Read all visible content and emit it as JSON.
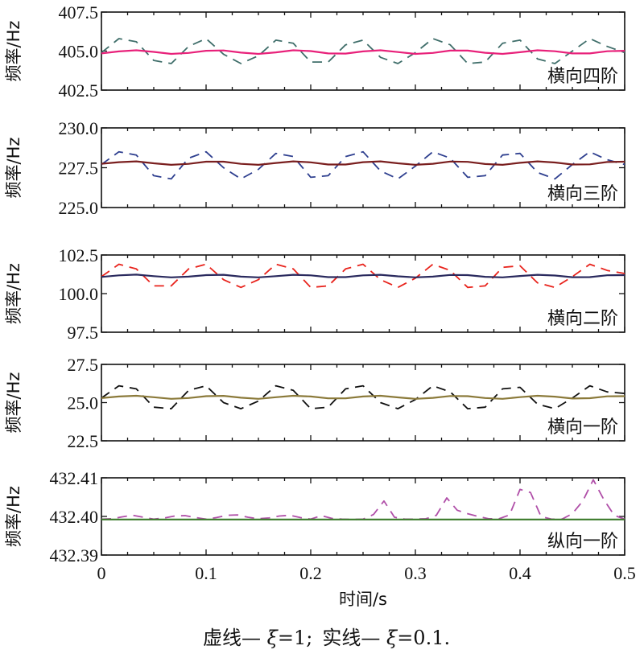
{
  "chart_data": [
    {
      "type": "line",
      "label": "横向四阶",
      "ylabel": "频率/Hz",
      "yticks": [
        "407.5",
        "405.0",
        "402.5"
      ],
      "ylim": [
        402.5,
        407.5
      ],
      "xlim": [
        0,
        0.5
      ],
      "series": [
        {
          "style": "dashed",
          "color": "#3f6e6a",
          "x": [
            0,
            0.0167,
            0.0333,
            0.05,
            0.0667,
            0.0833,
            0.1,
            0.1167,
            0.1333,
            0.15,
            0.1667,
            0.1833,
            0.2,
            0.2167,
            0.2333,
            0.25,
            0.2667,
            0.2833,
            0.3,
            0.3167,
            0.3333,
            0.35,
            0.3667,
            0.3833,
            0.4,
            0.4167,
            0.4333,
            0.45,
            0.4667,
            0.4833,
            0.5
          ],
          "y": [
            404.9,
            405.8,
            405.6,
            404.4,
            404.2,
            405.3,
            405.8,
            404.8,
            404.2,
            404.7,
            405.7,
            405.5,
            404.3,
            404.3,
            405.4,
            405.7,
            404.6,
            404.2,
            404.9,
            405.8,
            405.4,
            404.2,
            404.3,
            405.5,
            405.7,
            404.5,
            404.2,
            405.0,
            405.8,
            405.3,
            404.9
          ]
        },
        {
          "style": "solid",
          "color": "#e8217a",
          "x": [
            0,
            0.0167,
            0.0333,
            0.05,
            0.0667,
            0.0833,
            0.1,
            0.1167,
            0.1333,
            0.15,
            0.1667,
            0.1833,
            0.2,
            0.2167,
            0.2333,
            0.25,
            0.2667,
            0.2833,
            0.3,
            0.3167,
            0.3333,
            0.35,
            0.3667,
            0.3833,
            0.4,
            0.4167,
            0.4333,
            0.45,
            0.4667,
            0.4833,
            0.5
          ],
          "y": [
            404.85,
            404.98,
            405.05,
            404.95,
            404.82,
            404.88,
            405.02,
            405.04,
            404.9,
            404.82,
            404.92,
            405.05,
            405.0,
            404.85,
            404.84,
            404.98,
            405.05,
            404.94,
            404.82,
            404.88,
            405.03,
            405.03,
            404.89,
            404.82,
            404.93,
            405.05,
            404.99,
            404.85,
            404.85,
            404.99,
            405.02
          ]
        }
      ]
    },
    {
      "type": "line",
      "label": "横向三阶",
      "ylabel": "频率/Hz",
      "yticks": [
        "230.0",
        "227.5",
        "225.0"
      ],
      "ylim": [
        225.0,
        230.0
      ],
      "xlim": [
        0,
        0.5
      ],
      "series": [
        {
          "style": "dashed",
          "color": "#2e3f8f",
          "x": [
            0,
            0.0167,
            0.0333,
            0.05,
            0.0667,
            0.0833,
            0.1,
            0.1167,
            0.1333,
            0.15,
            0.1667,
            0.1833,
            0.2,
            0.2167,
            0.2333,
            0.25,
            0.2667,
            0.2833,
            0.3,
            0.3167,
            0.3333,
            0.35,
            0.3667,
            0.3833,
            0.4,
            0.4167,
            0.4333,
            0.45,
            0.4667,
            0.4833,
            0.5
          ],
          "y": [
            227.7,
            228.5,
            228.3,
            227.0,
            226.8,
            228.1,
            228.5,
            227.5,
            226.8,
            227.4,
            228.4,
            228.2,
            226.9,
            227.0,
            228.2,
            228.5,
            227.3,
            226.8,
            227.6,
            228.5,
            228.1,
            226.9,
            227.0,
            228.3,
            228.4,
            227.2,
            226.8,
            227.7,
            228.5,
            228.0,
            227.7
          ]
        },
        {
          "style": "solid",
          "color": "#7a1f1f",
          "x": [
            0,
            0.0167,
            0.0333,
            0.05,
            0.0667,
            0.0833,
            0.1,
            0.1167,
            0.1333,
            0.15,
            0.1667,
            0.1833,
            0.2,
            0.2167,
            0.2333,
            0.25,
            0.2667,
            0.2833,
            0.3,
            0.3167,
            0.3333,
            0.35,
            0.3667,
            0.3833,
            0.4,
            0.4167,
            0.4333,
            0.45,
            0.4667,
            0.4833,
            0.5
          ],
          "y": [
            227.75,
            227.85,
            227.9,
            227.78,
            227.68,
            227.74,
            227.88,
            227.88,
            227.74,
            227.68,
            227.8,
            227.9,
            227.84,
            227.7,
            227.7,
            227.85,
            227.9,
            227.78,
            227.68,
            227.75,
            227.89,
            227.87,
            227.73,
            227.68,
            227.81,
            227.9,
            227.83,
            227.7,
            227.71,
            227.86,
            227.88
          ]
        }
      ]
    },
    {
      "type": "line",
      "label": "横向二阶",
      "ylabel": "频率/Hz",
      "yticks": [
        "102.5",
        "100.0",
        "97.5"
      ],
      "ylim": [
        97.5,
        102.5
      ],
      "xlim": [
        0,
        0.5
      ],
      "series": [
        {
          "style": "dashed",
          "color": "#e8231c",
          "x": [
            0,
            0.0167,
            0.0333,
            0.05,
            0.0667,
            0.0833,
            0.1,
            0.1167,
            0.1333,
            0.15,
            0.1667,
            0.1833,
            0.2,
            0.2167,
            0.2333,
            0.25,
            0.2667,
            0.2833,
            0.3,
            0.3167,
            0.3333,
            0.35,
            0.3667,
            0.3833,
            0.4,
            0.4167,
            0.4333,
            0.45,
            0.4667,
            0.4833,
            0.5
          ],
          "y": [
            101.1,
            101.9,
            101.6,
            100.5,
            100.5,
            101.6,
            101.9,
            100.9,
            100.4,
            100.9,
            101.9,
            101.6,
            100.4,
            100.5,
            101.6,
            101.9,
            100.9,
            100.4,
            101.0,
            101.9,
            101.5,
            100.4,
            100.5,
            101.7,
            101.8,
            100.7,
            100.4,
            101.1,
            101.9,
            101.5,
            101.3
          ]
        },
        {
          "style": "solid",
          "color": "#2a2a5e",
          "x": [
            0,
            0.0167,
            0.0333,
            0.05,
            0.0667,
            0.0833,
            0.1,
            0.1167,
            0.1333,
            0.15,
            0.1667,
            0.1833,
            0.2,
            0.2167,
            0.2333,
            0.25,
            0.2667,
            0.2833,
            0.3,
            0.3167,
            0.3333,
            0.35,
            0.3667,
            0.3833,
            0.4,
            0.4167,
            0.4333,
            0.45,
            0.4667,
            0.4833,
            0.5
          ],
          "y": [
            101.08,
            101.18,
            101.23,
            101.13,
            101.05,
            101.1,
            101.2,
            101.22,
            101.1,
            101.05,
            101.13,
            101.22,
            101.18,
            101.07,
            101.07,
            101.18,
            101.22,
            101.12,
            101.05,
            101.1,
            101.21,
            101.2,
            101.09,
            101.05,
            101.14,
            101.22,
            101.17,
            101.06,
            101.07,
            101.19,
            101.2
          ]
        }
      ]
    },
    {
      "type": "line",
      "label": "横向一阶",
      "ylabel": "频率/Hz",
      "yticks": [
        "27.5",
        "25.0",
        "22.5"
      ],
      "ylim": [
        22.5,
        27.5
      ],
      "xlim": [
        0,
        0.5
      ],
      "series": [
        {
          "style": "dashed",
          "color": "#111111",
          "x": [
            0,
            0.0167,
            0.0333,
            0.05,
            0.0667,
            0.0833,
            0.1,
            0.1167,
            0.1333,
            0.15,
            0.1667,
            0.1833,
            0.2,
            0.2167,
            0.2333,
            0.25,
            0.2667,
            0.2833,
            0.3,
            0.3167,
            0.3333,
            0.35,
            0.3667,
            0.3833,
            0.4,
            0.4167,
            0.4333,
            0.45,
            0.4667,
            0.4833,
            0.5
          ],
          "y": [
            25.3,
            26.1,
            25.9,
            24.7,
            24.6,
            25.8,
            26.1,
            25.0,
            24.6,
            25.1,
            26.1,
            25.8,
            24.6,
            24.7,
            25.9,
            26.1,
            25.0,
            24.6,
            25.2,
            26.1,
            25.7,
            24.6,
            24.7,
            25.9,
            26.0,
            24.9,
            24.6,
            25.3,
            26.1,
            25.7,
            25.6
          ]
        },
        {
          "style": "solid",
          "color": "#8b7a3a",
          "x": [
            0,
            0.0167,
            0.0333,
            0.05,
            0.0667,
            0.0833,
            0.1,
            0.1167,
            0.1333,
            0.15,
            0.1667,
            0.1833,
            0.2,
            0.2167,
            0.2333,
            0.25,
            0.2667,
            0.2833,
            0.3,
            0.3167,
            0.3333,
            0.35,
            0.3667,
            0.3833,
            0.4,
            0.4167,
            0.4333,
            0.45,
            0.4667,
            0.4833,
            0.5
          ],
          "y": [
            25.3,
            25.4,
            25.45,
            25.35,
            25.25,
            25.3,
            25.42,
            25.44,
            25.32,
            25.25,
            25.35,
            25.45,
            25.4,
            25.28,
            25.28,
            25.4,
            25.45,
            25.34,
            25.25,
            25.31,
            25.43,
            25.42,
            25.3,
            25.25,
            25.36,
            25.45,
            25.39,
            25.27,
            25.29,
            25.41,
            25.42
          ]
        }
      ]
    },
    {
      "type": "line",
      "label": "纵向一阶",
      "ylabel": "频率/Hz",
      "yticks": [
        "432.41",
        "432.40",
        "432.39"
      ],
      "ylim": [
        432.39,
        432.41
      ],
      "xlim": [
        0,
        0.5
      ],
      "xticks": [
        "0",
        "0.1",
        "0.2",
        "0.3",
        "0.4",
        "0.5"
      ],
      "xlabel": "时间/s",
      "series": [
        {
          "style": "dashed",
          "color": "#b04fa8",
          "x": [
            0,
            0.01,
            0.02,
            0.03,
            0.04,
            0.05,
            0.06,
            0.07,
            0.08,
            0.09,
            0.1,
            0.11,
            0.12,
            0.13,
            0.14,
            0.15,
            0.16,
            0.17,
            0.18,
            0.19,
            0.2,
            0.21,
            0.22,
            0.23,
            0.24,
            0.25,
            0.26,
            0.27,
            0.28,
            0.29,
            0.3,
            0.31,
            0.32,
            0.33,
            0.34,
            0.35,
            0.36,
            0.37,
            0.38,
            0.39,
            0.4,
            0.41,
            0.42,
            0.43,
            0.44,
            0.45,
            0.46,
            0.47,
            0.48,
            0.49,
            0.5
          ],
          "y": [
            432.3993,
            432.3994,
            432.3999,
            432.4003,
            432.3998,
            432.3993,
            432.3996,
            432.4001,
            432.4002,
            432.3997,
            432.3993,
            432.3997,
            432.4003,
            432.4004,
            432.3998,
            432.3994,
            432.3996,
            432.4001,
            432.4003,
            432.3997,
            432.3993,
            432.4002,
            432.3995,
            432.3993,
            432.3992,
            432.3993,
            432.4005,
            432.404,
            432.3998,
            432.3993,
            432.3993,
            432.3994,
            432.4003,
            432.4048,
            432.4016,
            432.4007,
            432.4,
            432.3994,
            432.3994,
            432.4004,
            432.407,
            432.4062,
            432.4,
            432.3993,
            432.3993,
            432.4007,
            432.404,
            432.4095,
            432.4044,
            432.4003,
            432.3993
          ]
        },
        {
          "style": "solid",
          "color": "#3a7a2a",
          "x": [
            0,
            0.5
          ],
          "y": [
            432.3992,
            432.3992
          ]
        }
      ]
    }
  ],
  "caption": {
    "dashed_label": "虚线— ",
    "xi": "ξ",
    "dashed_value": "=1;",
    "solid_label": "实线— ",
    "solid_value": "=0.1."
  }
}
